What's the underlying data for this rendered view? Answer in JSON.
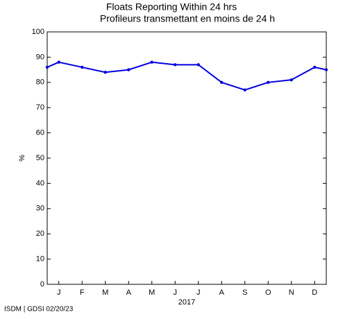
{
  "chart_data": {
    "type": "line",
    "title": "Floats Reporting Within 24 hrs",
    "subtitle": "Profileurs transmettant en moins de 24 h",
    "ylabel": "%",
    "xlabel": "2017",
    "footer": "ISDM | GDSI 02/20/23",
    "x": [
      0.5,
      1,
      2,
      3,
      4,
      5,
      6,
      7,
      8,
      9,
      10,
      11,
      12,
      12.5
    ],
    "series": [
      {
        "color": "#0000e0",
        "values": [
          86,
          88,
          86,
          84,
          85,
          88,
          87,
          87,
          80,
          77,
          80,
          81,
          86,
          85
        ]
      }
    ],
    "xlim": [
      0.5,
      12.5
    ],
    "xticks": [
      {
        "value": 1,
        "label": "J"
      },
      {
        "value": 2,
        "label": "F"
      },
      {
        "value": 3,
        "label": "M"
      },
      {
        "value": 4,
        "label": "A"
      },
      {
        "value": 5,
        "label": "M"
      },
      {
        "value": 6,
        "label": "J"
      },
      {
        "value": 7,
        "label": "J"
      },
      {
        "value": 8,
        "label": "A"
      },
      {
        "value": 9,
        "label": "S"
      },
      {
        "value": 10,
        "label": "O"
      },
      {
        "value": 11,
        "label": "N"
      },
      {
        "value": 12,
        "label": "D"
      }
    ],
    "ylim": [
      0,
      100
    ],
    "yticks": [
      0,
      10,
      20,
      30,
      40,
      50,
      60,
      70,
      80,
      90,
      100
    ]
  }
}
